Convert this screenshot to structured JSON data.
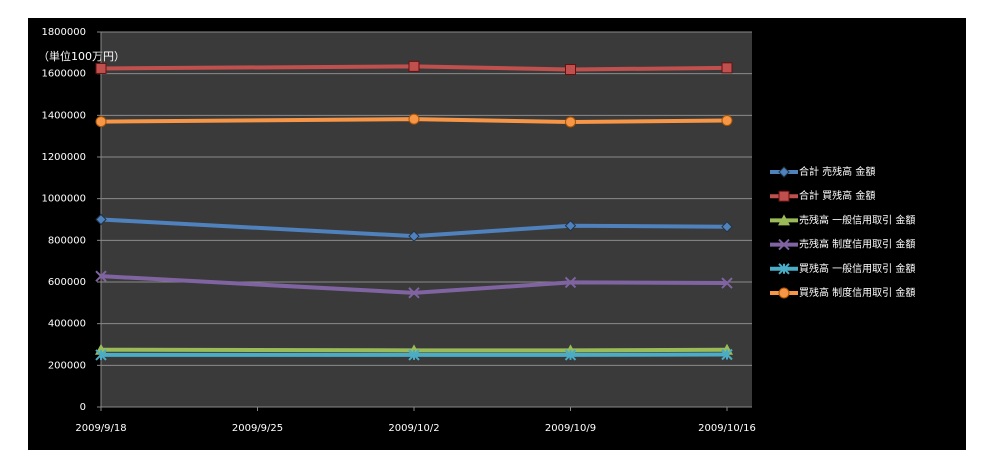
{
  "chart_data": {
    "type": "line",
    "annotation": "（単位100万円）",
    "x": [
      "2009/9/18",
      "2009/10/2",
      "2009/10/9",
      "2009/10/16"
    ],
    "xlim": [
      "2009/9/18",
      "2009/10/16"
    ],
    "xticks": [
      "2009/9/18",
      "2009/9/25",
      "2009/10/2",
      "2009/10/9",
      "2009/10/16"
    ],
    "ylim": [
      0,
      1800000
    ],
    "yticks": [
      0,
      200000,
      400000,
      600000,
      800000,
      1000000,
      1200000,
      1400000,
      1600000,
      1800000
    ],
    "grid": true,
    "legend": "right",
    "series": [
      {
        "name": "合計 売残高 金額",
        "color": "#4f81bd",
        "marker": "diamond",
        "values": [
          900000,
          820000,
          870000,
          865000
        ]
      },
      {
        "name": "合計 買残高 金額",
        "color": "#c0504d",
        "marker": "square",
        "values": [
          1625000,
          1635000,
          1620000,
          1628000
        ]
      },
      {
        "name": "売残高 一般信用取引 金額",
        "color": "#9bbb59",
        "marker": "triangle",
        "values": [
          275000,
          272000,
          272000,
          275000
        ]
      },
      {
        "name": "売残高 制度信用取引 金額",
        "color": "#8064a2",
        "marker": "x",
        "values": [
          628000,
          548000,
          598000,
          595000
        ]
      },
      {
        "name": "買残高 一般信用取引 金額",
        "color": "#4bacc6",
        "marker": "star",
        "values": [
          250000,
          250000,
          250000,
          252000
        ]
      },
      {
        "name": "買残高 制度信用取引 金額",
        "color": "#f79646",
        "marker": "circle",
        "values": [
          1370000,
          1382000,
          1368000,
          1375000
        ]
      }
    ]
  }
}
